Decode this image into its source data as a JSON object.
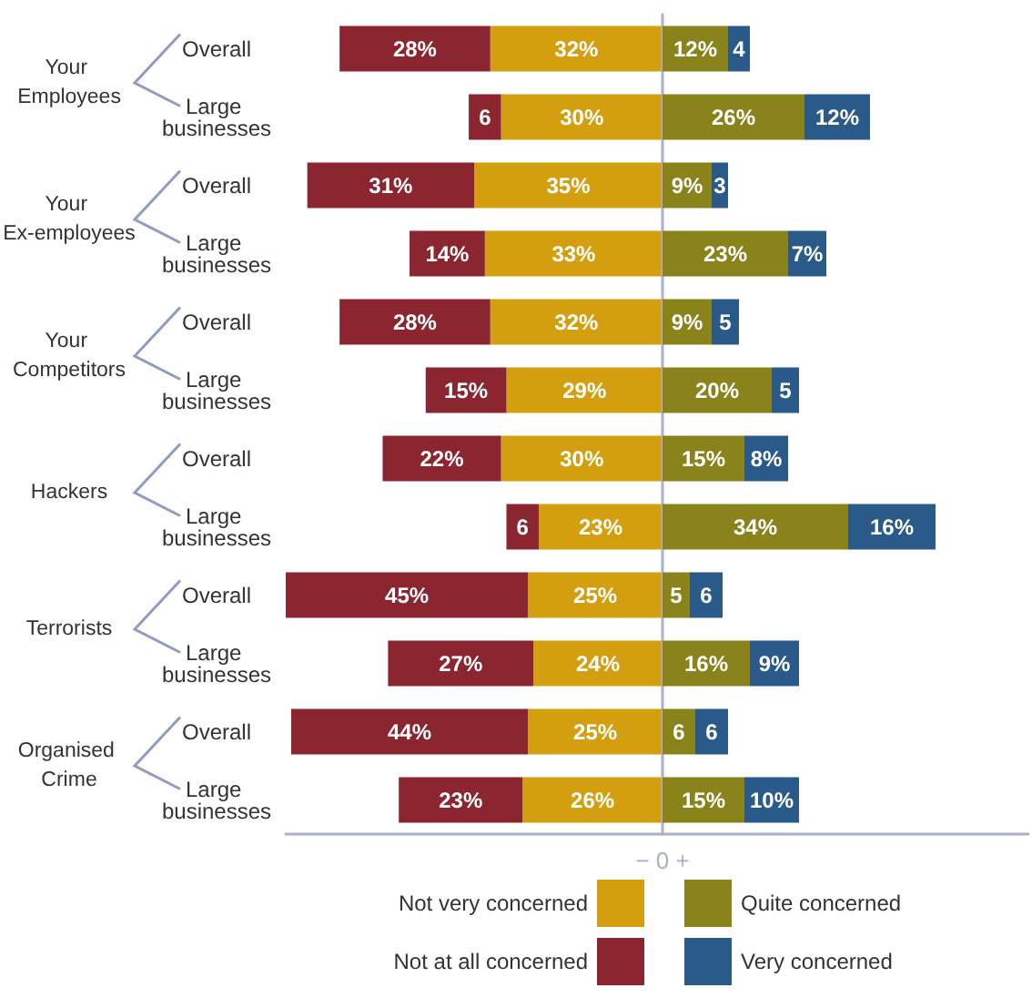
{
  "chart_data": [
    {
      "type": "bar",
      "orientation": "horizontal",
      "stacked": true,
      "tick_labels": "y",
      "categories": [
        "Overall",
        "Large businesses",
        "Overall",
        "Large businesses",
        "Overall",
        "Large businesses",
        "Overall",
        "Large businesses",
        "Overall",
        "Large businesses",
        "Overall",
        "Large businesses"
      ],
      "annotations": [
        "Your Employees",
        "Your Ex-employees",
        "Your Competitors",
        "Hackers",
        "Terrorists",
        "Organised Crime",
        "− 0 +"
      ],
      "xlim": [
        70,
        0
      ],
      "legend": "bottom",
      "series": [
        {
          "name": "Not very concerned",
          "color": "#d49f0e",
          "values": [
            32,
            30,
            35,
            33,
            32,
            29,
            30,
            23,
            25,
            24,
            25,
            26
          ],
          "value_labels": [
            "32%",
            "30%",
            "35%",
            "33%",
            "32%",
            "29%",
            "30%",
            "23%",
            "25%",
            "24%",
            "25%",
            "26%"
          ]
        },
        {
          "name": "Not at all concerned",
          "color": "#8b2530",
          "values": [
            28,
            6,
            31,
            14,
            28,
            15,
            22,
            6,
            45,
            27,
            44,
            23
          ],
          "value_labels": [
            "28%",
            "6",
            "31%",
            "14%",
            "28%",
            "15%",
            "22%",
            "6",
            "45%",
            "27%",
            "44%",
            "23%"
          ]
        }
      ]
    },
    {
      "type": "bar",
      "orientation": "horizontal",
      "stacked": true,
      "tick_labels": false,
      "categories": [
        "Overall",
        "Large businesses",
        "Overall",
        "Large businesses",
        "Overall",
        "Large businesses",
        "Overall",
        "Large businesses",
        "Overall",
        "Large businesses",
        "Overall",
        "Large businesses"
      ],
      "xlim": [
        0,
        67
      ],
      "legend": "bottom",
      "series": [
        {
          "name": "Quite concerned",
          "color": "#8a821a",
          "values": [
            12,
            26,
            9,
            23,
            9,
            20,
            15,
            34,
            5,
            16,
            6,
            15
          ],
          "value_labels": [
            "12%",
            "26%",
            "9%",
            "23%",
            "9%",
            "20%",
            "15%",
            "34%",
            "5",
            "16%",
            "6",
            "15%"
          ]
        },
        {
          "name": "Very concerned",
          "color": "#2a5a8a",
          "values": [
            4,
            12,
            3,
            7,
            5,
            5,
            8,
            16,
            6,
            9,
            6,
            10
          ],
          "value_labels": [
            "4",
            "12%",
            "3",
            "7%",
            "5",
            "5",
            "8%",
            "16%",
            "6",
            "9%",
            "6",
            "10%"
          ]
        }
      ]
    }
  ]
}
